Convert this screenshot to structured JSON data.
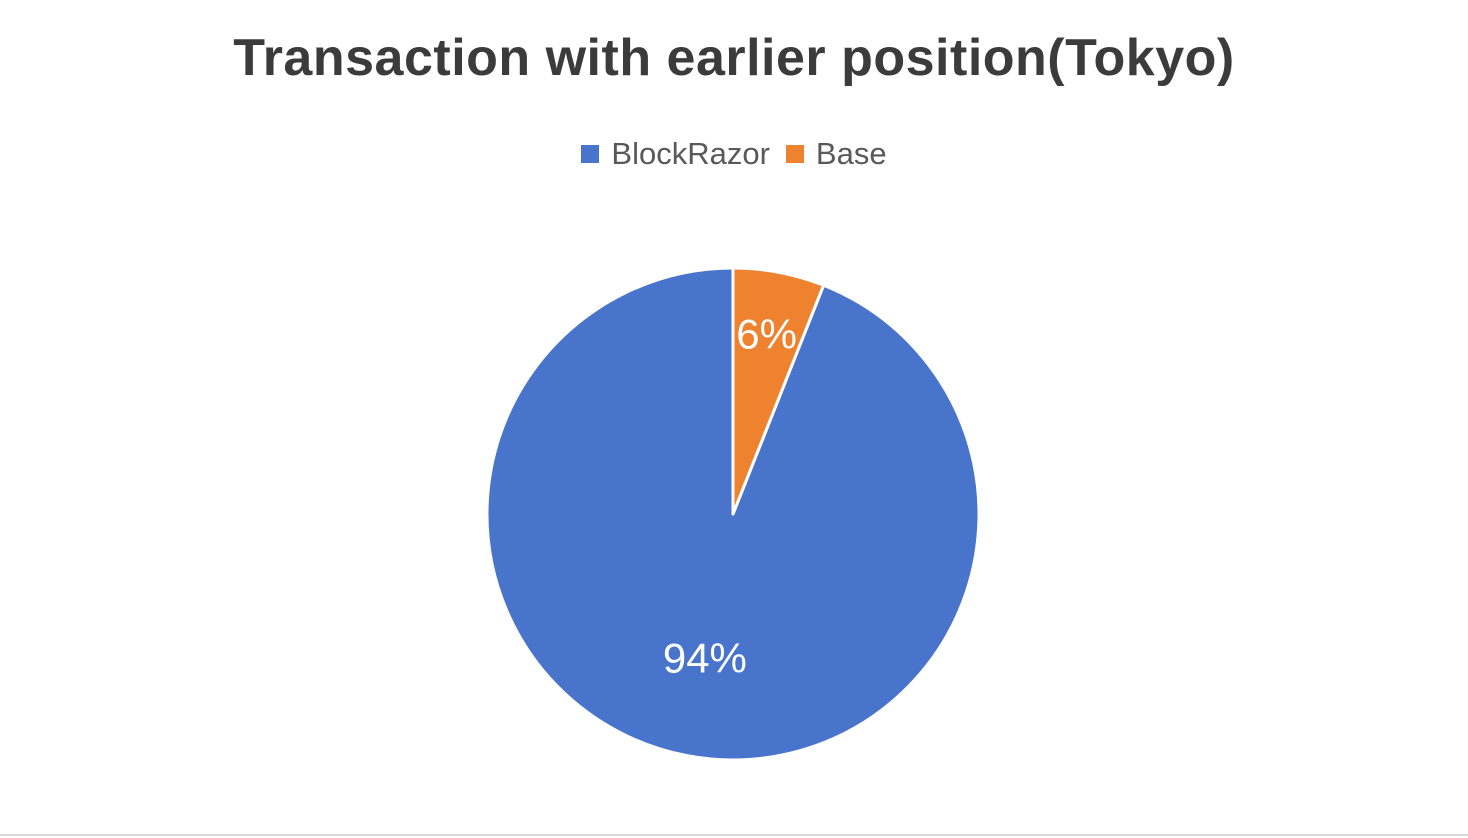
{
  "chart_data": {
    "type": "pie",
    "title": "Transaction with earlier position(Tokyo)",
    "categories": [
      "BlockRazor",
      "Base"
    ],
    "values": [
      94,
      6
    ],
    "data_labels": [
      "94%",
      "6%"
    ],
    "colors": [
      "#4874CB",
      "#EE822F"
    ],
    "legend_position": "top",
    "start": "12 o'clock",
    "direction": "counter-clockwise"
  }
}
